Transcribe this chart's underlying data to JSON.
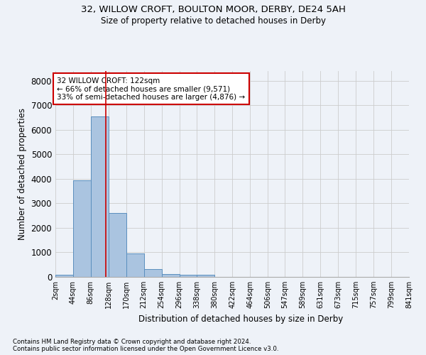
{
  "title": "32, WILLOW CROFT, BOULTON MOOR, DERBY, DE24 5AH",
  "subtitle": "Size of property relative to detached houses in Derby",
  "xlabel": "Distribution of detached houses by size in Derby",
  "ylabel": "Number of detached properties",
  "footnote1": "Contains HM Land Registry data © Crown copyright and database right 2024.",
  "footnote2": "Contains public sector information licensed under the Open Government Licence v3.0.",
  "annotation_title": "32 WILLOW CROFT: 122sqm",
  "annotation_line1": "← 66% of detached houses are smaller (9,571)",
  "annotation_line2": "33% of semi-detached houses are larger (4,876) →",
  "property_size": 122,
  "bin_edges": [
    2,
    44,
    86,
    128,
    170,
    212,
    254,
    296,
    338,
    380,
    422,
    464,
    506,
    547,
    589,
    631,
    673,
    715,
    757,
    799,
    841
  ],
  "bar_heights": [
    75,
    3950,
    6560,
    2620,
    960,
    310,
    130,
    100,
    85,
    0,
    0,
    0,
    0,
    0,
    0,
    0,
    0,
    0,
    0,
    0
  ],
  "bar_color": "#aac4e0",
  "bar_edge_color": "#5a8fbe",
  "vline_color": "#cc0000",
  "vline_x": 122,
  "annotation_box_color": "#cc0000",
  "ylim": [
    0,
    8400
  ],
  "yticks": [
    0,
    1000,
    2000,
    3000,
    4000,
    5000,
    6000,
    7000,
    8000
  ],
  "grid_color": "#cccccc",
  "background_color": "#eef2f8",
  "plot_bg_color": "#eef2f8",
  "tick_label_fontsize": 7,
  "axis_fontsize": 8.5,
  "title_fontsize": 9.5,
  "subtitle_fontsize": 8.5
}
